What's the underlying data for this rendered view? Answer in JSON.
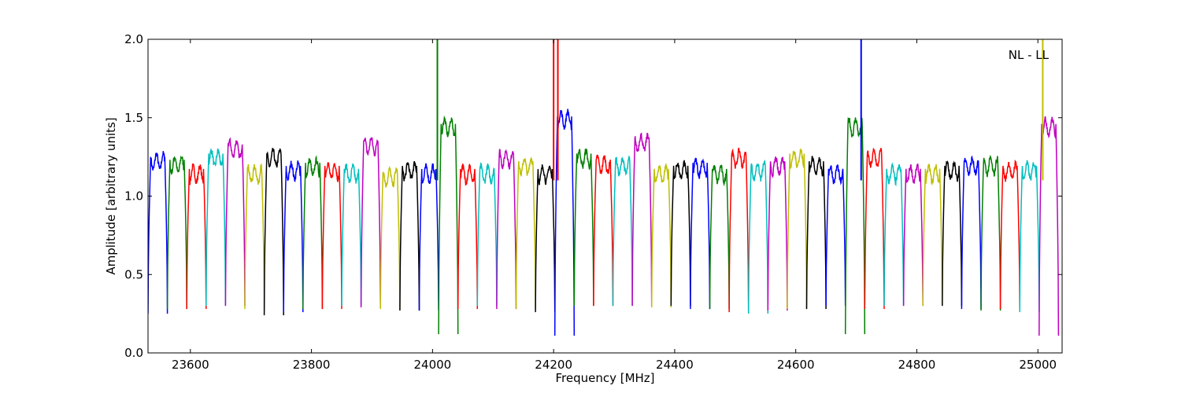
{
  "chart_data": {
    "type": "line",
    "annotation": "NL - LL",
    "xlabel": "Frequency [MHz]",
    "ylabel": "Amplitude [arbitrary units]",
    "xlim": [
      23530,
      25040
    ],
    "ylim": [
      0.0,
      2.0
    ],
    "x_ticks": [
      23600,
      23800,
      24000,
      24200,
      24400,
      24600,
      24800,
      25000
    ],
    "y_ticks": [
      0.0,
      0.5,
      1.0,
      1.5,
      2.0
    ],
    "x_tick_labels": [
      "23600",
      "23800",
      "24000",
      "24200",
      "24400",
      "24600",
      "24800",
      "25000"
    ],
    "y_tick_labels": [
      "0.0",
      "0.5",
      "1.0",
      "1.5",
      "2.0"
    ],
    "grid": false,
    "band_width_mhz": 32,
    "band_starts": [
      23530,
      23562,
      23594,
      23626,
      23658,
      23690,
      23722,
      23754,
      23786,
      23818,
      23850,
      23882,
      23914,
      23946,
      23978,
      24010,
      24042,
      24074,
      24106,
      24138,
      24170,
      24202,
      24234,
      24266,
      24298,
      24330,
      24362,
      24394,
      24426,
      24458,
      24490,
      24522,
      24554,
      24586,
      24618,
      24650,
      24682,
      24714,
      24746,
      24778,
      24810,
      24842,
      24874,
      24906,
      24938,
      24970,
      25002
    ],
    "band_peak_levels": [
      1.28,
      1.26,
      1.2,
      1.3,
      1.36,
      1.2,
      1.3,
      1.22,
      1.24,
      1.22,
      1.2,
      1.38,
      1.18,
      1.22,
      1.2,
      1.5,
      1.2,
      1.2,
      1.3,
      1.25,
      1.2,
      1.55,
      1.3,
      1.26,
      1.25,
      1.4,
      1.2,
      1.22,
      1.24,
      1.2,
      1.3,
      1.22,
      1.25,
      1.3,
      1.25,
      1.2,
      1.5,
      1.3,
      1.2,
      1.2,
      1.2,
      1.22,
      1.25,
      1.25,
      1.22,
      1.22,
      1.5
    ],
    "band_min_levels": [
      0.25,
      0.28,
      0.28,
      0.3,
      0.3,
      0.28,
      0.24,
      0.26,
      0.28,
      0.28,
      0.3,
      0.29,
      0.28,
      0.27,
      0.27,
      0.12,
      0.28,
      0.3,
      0.28,
      0.28,
      0.26,
      0.11,
      0.3,
      0.3,
      0.3,
      0.3,
      0.29,
      0.3,
      0.28,
      0.28,
      0.26,
      0.25,
      0.27,
      0.28,
      0.28,
      0.3,
      0.12,
      0.28,
      0.3,
      0.3,
      0.3,
      0.3,
      0.28,
      0.27,
      0.28,
      0.26,
      0.11
    ],
    "spikes": [
      {
        "x": 24008,
        "y": 2.0,
        "color": "#008000"
      },
      {
        "x": 24200,
        "y": 2.0,
        "color": "#ff0000"
      },
      {
        "x": 24207,
        "y": 2.0,
        "color": "#ff0000"
      },
      {
        "x": 24708,
        "y": 2.0,
        "color": "#0000ff"
      },
      {
        "x": 25008,
        "y": 2.0,
        "color": "#bfbf00"
      }
    ],
    "series_colors": [
      "#0000ff",
      "#008000",
      "#ff0000",
      "#00bfbf",
      "#bf00bf",
      "#bfbf00",
      "#000000"
    ]
  }
}
